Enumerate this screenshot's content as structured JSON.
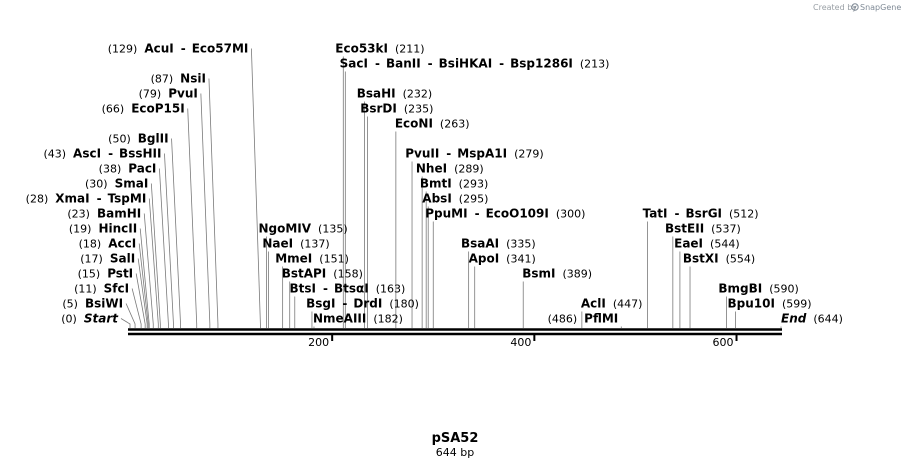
{
  "credit": {
    "prefix": "Created by",
    "brand": "SnapGene"
  },
  "map": {
    "name": "pSA52",
    "length_label": "644 bp",
    "length": 644,
    "ticks": [
      {
        "value": 200,
        "label": "200"
      },
      {
        "value": 400,
        "label": "400"
      },
      {
        "value": 600,
        "label": "600"
      }
    ],
    "sites": [
      {
        "name": "Start",
        "pos": 0,
        "pos_label": "(0)",
        "italic": true,
        "side": "left",
        "row": 0
      },
      {
        "name": "BsiWI",
        "pos": 5,
        "pos_label": "(5)",
        "side": "left",
        "row": 1
      },
      {
        "name": "SfcI",
        "pos": 11,
        "pos_label": "(11)",
        "side": "left",
        "row": 2
      },
      {
        "name": "PstI",
        "pos": 15,
        "pos_label": "(15)",
        "side": "left",
        "row": 3
      },
      {
        "name": "SalI",
        "pos": 17,
        "pos_label": "(17)",
        "side": "left",
        "row": 4
      },
      {
        "name": "AccI",
        "pos": 18,
        "pos_label": "(18)",
        "side": "left",
        "row": 5
      },
      {
        "name": "HincII",
        "pos": 19,
        "pos_label": "(19)",
        "side": "left",
        "row": 6
      },
      {
        "name": "BamHI",
        "pos": 23,
        "pos_label": "(23)",
        "side": "left",
        "row": 7
      },
      {
        "names": [
          "XmaI",
          "TspMI"
        ],
        "pos": 28,
        "pos_label": "(28)",
        "side": "left",
        "row": 8
      },
      {
        "name": "SmaI",
        "pos": 30,
        "pos_label": "(30)",
        "side": "left",
        "row": 9
      },
      {
        "name": "PacI",
        "pos": 38,
        "pos_label": "(38)",
        "side": "left",
        "row": 10
      },
      {
        "names": [
          "AscI",
          "BssHII"
        ],
        "pos": 43,
        "pos_label": "(43)",
        "side": "left",
        "row": 11
      },
      {
        "name": "BglII",
        "pos": 50,
        "pos_label": "(50)",
        "side": "left",
        "row": 12
      },
      {
        "name": "EcoP15I",
        "pos": 66,
        "pos_label": "(66)",
        "side": "left",
        "row": 14
      },
      {
        "name": "PvuI",
        "pos": 79,
        "pos_label": "(79)",
        "side": "left",
        "row": 15
      },
      {
        "name": "NsiI",
        "pos": 87,
        "pos_label": "(87)",
        "side": "left",
        "row": 16
      },
      {
        "names": [
          "AcuI",
          "Eco57MI"
        ],
        "pos": 129,
        "pos_label": "(129)",
        "side": "left",
        "row": 18
      },
      {
        "name": "NmeAIII",
        "pos": 182,
        "pos_label": "(182)",
        "side": "right",
        "row": 0
      },
      {
        "names": [
          "BsgI",
          "DrdI"
        ],
        "pos": 180,
        "pos_label": "(180)",
        "side": "right",
        "row": 1
      },
      {
        "names": [
          "BtsI",
          "BtsαI"
        ],
        "pos": 163,
        "pos_label": "(163)",
        "side": "right",
        "row": 2
      },
      {
        "name": "BstAPI",
        "pos": 158,
        "pos_label": "(158)",
        "side": "right",
        "row": 3
      },
      {
        "name": "MmeI",
        "pos": 151,
        "pos_label": "(151)",
        "side": "right",
        "row": 4
      },
      {
        "name": "NaeI",
        "pos": 137,
        "pos_label": "(137)",
        "side": "right",
        "row": 5
      },
      {
        "name": "NgoMIV",
        "pos": 135,
        "pos_label": "(135)",
        "side": "right",
        "row": 6
      },
      {
        "names": [
          "PpuMI",
          "EcoO109I"
        ],
        "pos": 300,
        "pos_label": "(300)",
        "side": "right",
        "row": 7
      },
      {
        "name": "AbsI",
        "pos": 295,
        "pos_label": "(295)",
        "side": "right",
        "row": 8
      },
      {
        "name": "BmtI",
        "pos": 293,
        "pos_label": "(293)",
        "side": "right",
        "row": 9
      },
      {
        "name": "NheI",
        "pos": 289,
        "pos_label": "(289)",
        "side": "right",
        "row": 10
      },
      {
        "names": [
          "PvuII",
          "MspA1I"
        ],
        "pos": 279,
        "pos_label": "(279)",
        "side": "right",
        "row": 11
      },
      {
        "name": "EcoNI",
        "pos": 263,
        "pos_label": "(263)",
        "side": "right",
        "row": 13
      },
      {
        "name": "BsrDI",
        "pos": 235,
        "pos_label": "(235)",
        "side": "right",
        "row": 14
      },
      {
        "name": "BsaHI",
        "pos": 232,
        "pos_label": "(232)",
        "side": "right",
        "row": 15
      },
      {
        "names": [
          "SacI",
          "BanII",
          "BsiHKAI",
          "Bsp1286I"
        ],
        "pos": 213,
        "pos_label": "(213)",
        "side": "right",
        "row": 17
      },
      {
        "name": "Eco53kI",
        "pos": 211,
        "pos_label": "(211)",
        "side": "right",
        "row": 18
      },
      {
        "name": "ApoI",
        "pos": 341,
        "pos_label": "(341)",
        "side": "right",
        "row": 4
      },
      {
        "name": "BsaAI",
        "pos": 335,
        "pos_label": "(335)",
        "side": "right",
        "row": 5
      },
      {
        "name": "BsmI",
        "pos": 389,
        "pos_label": "(389)",
        "side": "right",
        "row": 3
      },
      {
        "name": "AclI",
        "pos": 447,
        "pos_label": "(447)",
        "side": "right",
        "row": 1
      },
      {
        "name": "PflMI",
        "pos": 486,
        "pos_label": "(486)",
        "side": "left",
        "row": 0
      },
      {
        "names": [
          "TatI",
          "BsrGI"
        ],
        "pos": 512,
        "pos_label": "(512)",
        "side": "right",
        "row": 7
      },
      {
        "name": "BstEII",
        "pos": 537,
        "pos_label": "(537)",
        "side": "right",
        "row": 6
      },
      {
        "name": "EaeI",
        "pos": 544,
        "pos_label": "(544)",
        "side": "right",
        "row": 5
      },
      {
        "name": "BstXI",
        "pos": 554,
        "pos_label": "(554)",
        "side": "right",
        "row": 4
      },
      {
        "name": "BmgBI",
        "pos": 590,
        "pos_label": "(590)",
        "side": "right",
        "row": 2
      },
      {
        "name": "Bpu10I",
        "pos": 599,
        "pos_label": "(599)",
        "side": "right",
        "row": 1
      },
      {
        "name": "End",
        "pos": 644,
        "pos_label": "(644)",
        "italic": true,
        "side": "right",
        "row": 0
      }
    ]
  }
}
